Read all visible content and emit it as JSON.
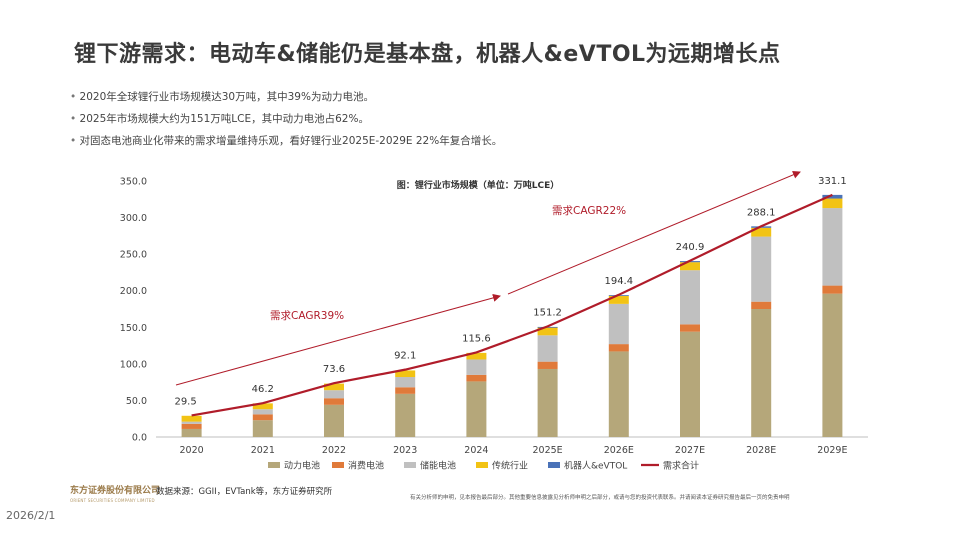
{
  "page": {
    "title": "锂下游需求：电动车&储能仍是基本盘，机器人&eVTOL为远期增长点",
    "bullets": [
      "2020年全球锂行业市场规模达30万吨，其中39%为动力电池。",
      "2025年市场规模大约为151万吨LCE，其中动力电池占62%。",
      "对固态电池商业化带来的需求增量维持乐观，看好锂行业2025E-2029E 22%年复合增长。"
    ],
    "source": "数据来源：GGII，EVTank等，东方证券研究所",
    "disclaimer": "有关分析师的申明，见本报告最后部分。其他重要信息披露见分析师申明之后部分，或请与您的投资代表联系。并请阅读本证券研究报告最后一页的免责申明",
    "logo_name": "东方证券股份有限公司",
    "logo_sub": "ORIENT SECURITIES COMPANY LIMITED",
    "date": "2026/2/1"
  },
  "chart_data": {
    "type": "bar",
    "stacked": true,
    "title": "图：锂行业市场规模（单位：万吨LCE）",
    "categories": [
      "2020",
      "2021",
      "2022",
      "2023",
      "2024",
      "2025E",
      "2026E",
      "2027E",
      "2028E",
      "2029E"
    ],
    "series": [
      {
        "name": "动力电池",
        "color": "#b5a77a",
        "values": [
          11,
          23,
          44,
          59,
          76,
          93,
          117,
          144,
          175,
          196
        ]
      },
      {
        "name": "消费电池",
        "color": "#e07a3a",
        "values": [
          7,
          8,
          9,
          9,
          9,
          10,
          10,
          10,
          10,
          11
        ]
      },
      {
        "name": "储能电池",
        "color": "#c0c0c0",
        "values": [
          3,
          7,
          11,
          14,
          21,
          36,
          55,
          74,
          89,
          106
        ]
      },
      {
        "name": "传统行业",
        "color": "#f2c314",
        "values": [
          8,
          8,
          9,
          9,
          9,
          11,
          11,
          11,
          12,
          13
        ]
      },
      {
        "name": "机器人&eVTOL",
        "color": "#4a72b8",
        "values": [
          0,
          0,
          0,
          0,
          0,
          0.5,
          1,
          1.5,
          2,
          5
        ]
      }
    ],
    "line": {
      "name": "需求合计",
      "color": "#b01c2a",
      "values": [
        29.5,
        46.2,
        73.6,
        92.1,
        115.6,
        151.2,
        194.4,
        240.9,
        288.1,
        331.1
      ]
    },
    "total_labels": [
      "29.5",
      "46.2",
      "73.6",
      "92.1",
      "115.6",
      "151.2",
      "194.4",
      "240.9",
      "288.1",
      "331.1"
    ],
    "ylim": [
      0,
      350
    ],
    "yticks": [
      "0.0",
      "50.0",
      "100.0",
      "150.0",
      "200.0",
      "250.0",
      "300.0",
      "350.0"
    ],
    "annotations": [
      {
        "text": "需求CAGR39%",
        "color": "#b01c2a"
      },
      {
        "text": "需求CAGR22%",
        "color": "#b01c2a"
      }
    ],
    "legend_position": "bottom"
  }
}
